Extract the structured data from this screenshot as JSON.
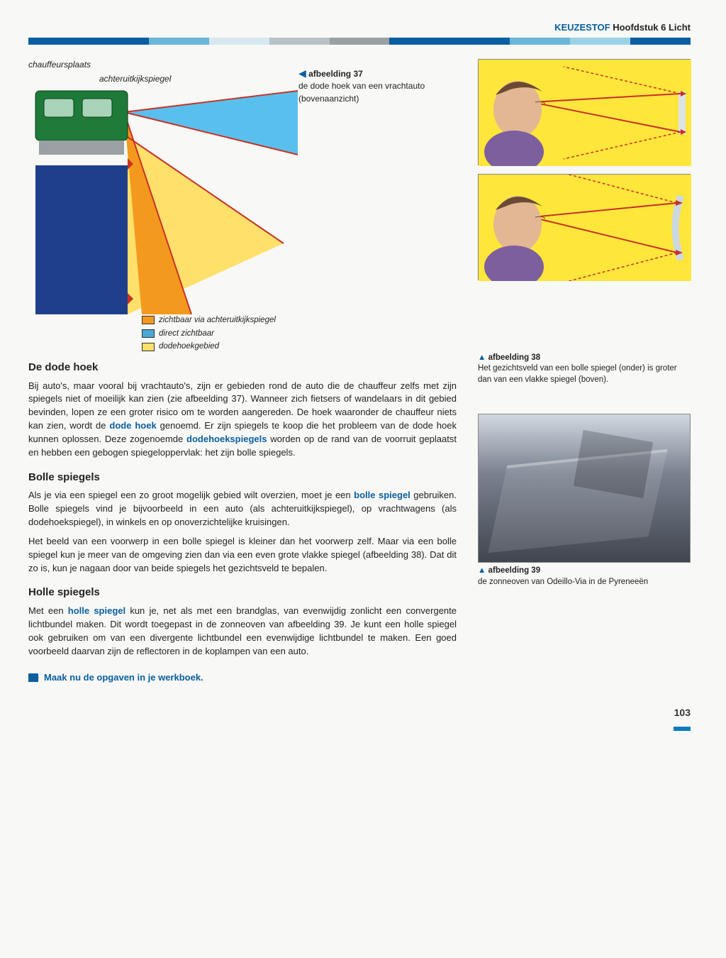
{
  "header": {
    "keyword": "KEUZESTOF",
    "rest": "Hoofdstuk 6 Licht"
  },
  "colorbar": [
    "#0a5fa0",
    "#0a5fa0",
    "#6bb5d8",
    "#d7e8f0",
    "#b9c2c7",
    "#9aa0a4",
    "#0a5fa0",
    "#0a5fa0",
    "#6bb5d8",
    "#9cd2e6",
    "#0a5fa0"
  ],
  "diagram37": {
    "label_chauffeur": "chauffeursplaats",
    "label_achteruit": "achteruitkijkspiegel",
    "caption_arrow": "◀",
    "caption_title": "afbeelding 37",
    "caption_text": "de dode hoek van een vrachtauto (bovenaanzicht)",
    "legend": [
      {
        "color": "#f39a1e",
        "label": "zichtbaar via achteruitkijkspiegel"
      },
      {
        "color": "#4aa7d4",
        "label": "direct zichtbaar"
      },
      {
        "color": "#ffe06a",
        "label": "dodehoekgebied"
      }
    ],
    "truck_body_color": "#1f3f8c",
    "truck_cab_color": "#1e7a38",
    "cone_direct": "#59c0ee",
    "cone_mirror": "#f39a1e",
    "cone_deadzone": "#ffe06a",
    "ray_color": "#c73228"
  },
  "diagram38": {
    "bg": "#ffe63b",
    "face_skin": "#e3b793",
    "hair": "#6b4a33",
    "shirt": "#7d5f9d",
    "ray": "#c73228",
    "mirror_flat": "#dce3e8",
    "mirror_curved": "#cbd8df",
    "caption_up": "▲",
    "caption_title": "afbeelding 38",
    "caption_text": "Het gezichtsveld van een bolle spiegel (onder) is groter dan van een vlakke spiegel (boven)."
  },
  "diagram39": {
    "caption_up": "▲",
    "caption_title": "afbeelding 39",
    "caption_text": "de zonneoven van Odeillo-Via in de Pyreneeën"
  },
  "sections": {
    "dode_hoek": {
      "title": "De dode hoek",
      "p1a": "Bij auto's, maar vooral bij vrachtauto's, zijn er gebieden rond de auto die de chauffeur zelfs met zijn spiegels niet of moeilijk kan zien (zie afbeelding 37). Wanneer zich fietsers of wandelaars in dit gebied bevinden, lopen ze een groter risico om te worden aangereden. De hoek waaronder de chauffeur niets kan zien, wordt de ",
      "term1": "dode hoek",
      "p1b": " genoemd.",
      "p2a": "Er zijn spiegels te koop die het probleem van de dode hoek kunnen oplossen. Deze zogenoemde ",
      "term2": "dodehoekspiegels",
      "p2b": " worden op de rand van de voorruit geplaatst en hebben een gebogen spiegeloppervlak: het zijn bolle spiegels."
    },
    "bolle": {
      "title": "Bolle spiegels",
      "p1a": "Als je via een spiegel een zo groot mogelijk gebied wilt overzien, moet je een ",
      "term": "bolle spiegel",
      "p1b": " gebruiken. Bolle spiegels vind je bijvoorbeeld in een auto (als achteruitkijkspiegel), op vrachtwagens (als dodehoekspiegel), in winkels en op onoverzichtelijke kruisingen.",
      "p2": "Het beeld van een voorwerp in een bolle spiegel is kleiner dan het voorwerp zelf. Maar via een bolle spiegel kun je meer van de omgeving zien dan via een even grote vlakke spiegel (afbeelding 38). Dat dit zo is, kun je nagaan door van beide spiegels het gezichtsveld te bepalen."
    },
    "holle": {
      "title": "Holle spiegels",
      "p1a": "Met een ",
      "term": "holle spiegel",
      "p1b": " kun je, net als met een brandglas, van evenwijdig zonlicht een convergente lichtbundel maken. Dit wordt toegepast in de zonneoven van afbeelding 39. Je kunt een holle spiegel ook gebruiken om van een divergente lichtbundel een evenwijdige lichtbundel te maken. Een goed voorbeeld daarvan zijn de reflectoren in de koplampen van een auto."
    }
  },
  "cta": "Maak nu de opgaven in je werkboek.",
  "page_number": "103"
}
